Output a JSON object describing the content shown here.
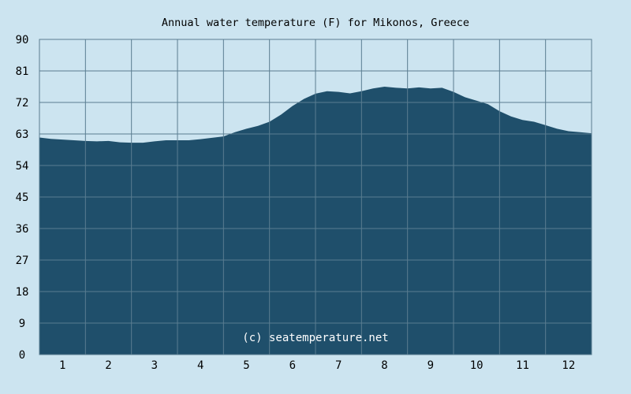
{
  "chart_data": {
    "type": "area",
    "title": "Annual water temperature (F) for Mikonos, Greece",
    "xlabel": "",
    "ylabel": "",
    "ylim": [
      0,
      90
    ],
    "xlim": [
      0.5,
      12.5
    ],
    "y_ticks": [
      0,
      9,
      18,
      27,
      36,
      45,
      54,
      63,
      72,
      81,
      90
    ],
    "x_ticks": [
      1,
      2,
      3,
      4,
      5,
      6,
      7,
      8,
      9,
      10,
      11,
      12
    ],
    "grid": true,
    "legend": "none",
    "watermark": "(c) seatemperature.net",
    "colors": {
      "background": "#cce4f0",
      "plot_background": "#cce4f0",
      "fill": "#1f4f6b",
      "grid": "#5a7d91",
      "text": "#000000",
      "watermark_text": "#ffffff"
    },
    "series": [
      {
        "x": [
          0.5,
          0.75,
          1.0,
          1.25,
          1.5,
          1.75,
          2.0,
          2.25,
          2.5,
          2.75,
          3.0,
          3.25,
          3.5,
          3.75,
          4.0,
          4.25,
          4.5,
          4.75,
          5.0,
          5.25,
          5.5,
          5.75,
          6.0,
          6.25,
          6.5,
          6.75,
          7.0,
          7.25,
          7.5,
          7.75,
          8.0,
          8.25,
          8.5,
          8.75,
          9.0,
          9.25,
          9.5,
          9.75,
          10.0,
          10.25,
          10.5,
          10.75,
          11.0,
          11.25,
          11.5,
          11.75,
          12.0,
          12.25,
          12.5
        ],
        "values": [
          62.0,
          61.6,
          61.4,
          61.2,
          61.0,
          60.9,
          61.0,
          60.6,
          60.5,
          60.5,
          60.9,
          61.2,
          61.2,
          61.2,
          61.5,
          61.9,
          62.3,
          63.5,
          64.5,
          65.3,
          66.5,
          68.5,
          71.0,
          73.0,
          74.5,
          75.2,
          75.0,
          74.6,
          75.2,
          76.0,
          76.5,
          76.2,
          76.0,
          76.3,
          76.0,
          76.2,
          75.0,
          73.5,
          72.5,
          71.5,
          69.5,
          68.0,
          67.0,
          66.5,
          65.5,
          64.5,
          63.8,
          63.5,
          63.2
        ]
      }
    ]
  }
}
